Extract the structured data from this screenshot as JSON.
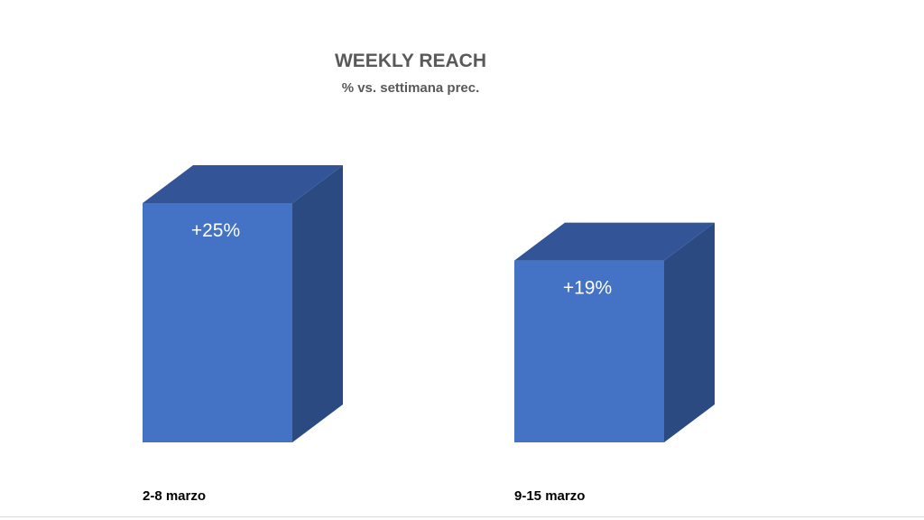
{
  "chart_data": {
    "type": "bar",
    "title": "WEEKLY REACH",
    "subtitle": "% vs. settimana prec.",
    "categories": [
      "2-8 marzo",
      "9-15 marzo"
    ],
    "values": [
      25,
      19
    ],
    "data_labels": [
      "+25%",
      "+19%"
    ],
    "ylabel": "",
    "xlabel": "",
    "ylim": [
      0,
      25
    ],
    "grid": false,
    "legend": "none",
    "style": "3d-column",
    "colors": {
      "front": "#4472c4",
      "top": "#335597",
      "side": "#2b4a82",
      "title_text": "#595959",
      "category_text": "#000000",
      "label_text": "#ffffff"
    }
  }
}
